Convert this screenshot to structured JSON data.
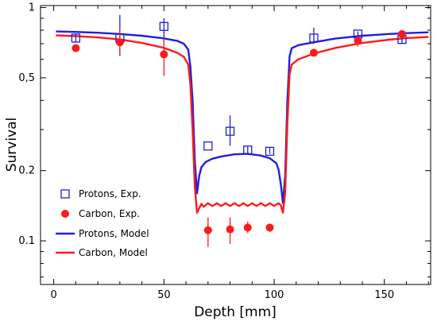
{
  "chart_data": {
    "type": "line",
    "title": "",
    "xlabel": "Depth [mm]",
    "ylabel": "Survival",
    "xlim": [
      -6,
      171
    ],
    "ylim": [
      0.065,
      1.02
    ],
    "yscale": "log",
    "xticks": [
      0,
      50,
      100,
      150
    ],
    "yticks": [
      0.1,
      0.2,
      0.5,
      1
    ],
    "ytick_labels": [
      "0.1",
      "0.2",
      "0,5",
      "1"
    ],
    "grid": false,
    "legend_position": "bottom-left",
    "series": [
      {
        "name": "Protons, Exp.",
        "kind": "scatter",
        "marker": "open-square",
        "color": "#1f1fd0",
        "points": [
          {
            "x": 10,
            "y": 0.74,
            "err": [
              0.71,
              0.77
            ]
          },
          {
            "x": 30,
            "y": 0.74,
            "err": [
              0.62,
              0.93
            ]
          },
          {
            "x": 50,
            "y": 0.83,
            "err": [
              0.7,
              0.9
            ]
          },
          {
            "x": 70,
            "y": 0.255,
            "err": null
          },
          {
            "x": 80,
            "y": 0.295,
            "err": [
              0.255,
              0.345
            ]
          },
          {
            "x": 88,
            "y": 0.245,
            "err": [
              0.236,
              0.255
            ]
          },
          {
            "x": 98,
            "y": 0.242,
            "err": [
              0.236,
              0.25
            ]
          },
          {
            "x": 118,
            "y": 0.74,
            "err": [
              0.7,
              0.82
            ]
          },
          {
            "x": 138,
            "y": 0.77,
            "err": [
              0.75,
              0.79
            ]
          },
          {
            "x": 158,
            "y": 0.73,
            "err": [
              0.7,
              0.76
            ]
          }
        ]
      },
      {
        "name": "Carbon, Exp.",
        "kind": "scatter",
        "marker": "filled-circle",
        "color": "#ff1a1a",
        "points": [
          {
            "x": 10,
            "y": 0.67,
            "err": null
          },
          {
            "x": 30,
            "y": 0.71,
            "err": [
              0.64,
              0.8
            ]
          },
          {
            "x": 50,
            "y": 0.63,
            "err": [
              0.51,
              0.74
            ]
          },
          {
            "x": 70,
            "y": 0.111,
            "err": [
              0.094,
              0.126
            ]
          },
          {
            "x": 80,
            "y": 0.112,
            "err": [
              0.097,
              0.126
            ]
          },
          {
            "x": 88,
            "y": 0.114,
            "err": [
              0.108,
              0.121
            ]
          },
          {
            "x": 98,
            "y": 0.114,
            "err": [
              0.109,
              0.118
            ]
          },
          {
            "x": 118,
            "y": 0.64,
            "err": null
          },
          {
            "x": 138,
            "y": 0.72,
            "err": [
              0.68,
              0.75
            ]
          },
          {
            "x": 158,
            "y": 0.77,
            "err": [
              0.75,
              0.79
            ]
          }
        ]
      },
      {
        "name": "Protons, Model",
        "kind": "line",
        "color": "#1f1fe0",
        "points": [
          [
            1,
            0.79
          ],
          [
            10,
            0.786
          ],
          [
            20,
            0.78
          ],
          [
            30,
            0.77
          ],
          [
            40,
            0.757
          ],
          [
            50,
            0.738
          ],
          [
            56,
            0.72
          ],
          [
            59,
            0.7
          ],
          [
            61,
            0.66
          ],
          [
            62,
            0.56
          ],
          [
            63,
            0.4
          ],
          [
            64,
            0.22
          ],
          [
            65,
            0.16
          ],
          [
            66,
            0.19
          ],
          [
            67,
            0.207
          ],
          [
            69,
            0.218
          ],
          [
            72,
            0.225
          ],
          [
            76,
            0.23
          ],
          [
            82,
            0.235
          ],
          [
            88,
            0.236
          ],
          [
            94,
            0.232
          ],
          [
            98,
            0.226
          ],
          [
            101,
            0.215
          ],
          [
            102,
            0.202
          ],
          [
            103,
            0.175
          ],
          [
            104,
            0.145
          ],
          [
            105,
            0.19
          ],
          [
            106,
            0.4
          ],
          [
            107,
            0.62
          ],
          [
            108,
            0.67
          ],
          [
            111,
            0.69
          ],
          [
            118,
            0.71
          ],
          [
            128,
            0.737
          ],
          [
            140,
            0.757
          ],
          [
            152,
            0.77
          ],
          [
            160,
            0.777
          ],
          [
            170,
            0.783
          ]
        ]
      },
      {
        "name": "Carbon, Model",
        "kind": "line",
        "color": "#ff1a1a",
        "points": [
          [
            1,
            0.76
          ],
          [
            10,
            0.755
          ],
          [
            20,
            0.745
          ],
          [
            30,
            0.73
          ],
          [
            40,
            0.705
          ],
          [
            50,
            0.672
          ],
          [
            56,
            0.64
          ],
          [
            59,
            0.615
          ],
          [
            61,
            0.57
          ],
          [
            62,
            0.47
          ],
          [
            63,
            0.3
          ],
          [
            64,
            0.17
          ],
          [
            65,
            0.132
          ],
          [
            66,
            0.138
          ],
          [
            67,
            0.144
          ],
          [
            68,
            0.14
          ],
          [
            70,
            0.145
          ],
          [
            72,
            0.141
          ],
          [
            74,
            0.145
          ],
          [
            76,
            0.141
          ],
          [
            78,
            0.145
          ],
          [
            80,
            0.141
          ],
          [
            82,
            0.145
          ],
          [
            84,
            0.141
          ],
          [
            86,
            0.145
          ],
          [
            88,
            0.141
          ],
          [
            90,
            0.145
          ],
          [
            92,
            0.141
          ],
          [
            94,
            0.145
          ],
          [
            96,
            0.141
          ],
          [
            98,
            0.145
          ],
          [
            100,
            0.141
          ],
          [
            102,
            0.145
          ],
          [
            103,
            0.142
          ],
          [
            104,
            0.132
          ],
          [
            105,
            0.16
          ],
          [
            106,
            0.32
          ],
          [
            107,
            0.52
          ],
          [
            108,
            0.57
          ],
          [
            111,
            0.6
          ],
          [
            118,
            0.635
          ],
          [
            128,
            0.672
          ],
          [
            140,
            0.705
          ],
          [
            152,
            0.728
          ],
          [
            160,
            0.74
          ],
          [
            170,
            0.748
          ]
        ]
      }
    ]
  }
}
